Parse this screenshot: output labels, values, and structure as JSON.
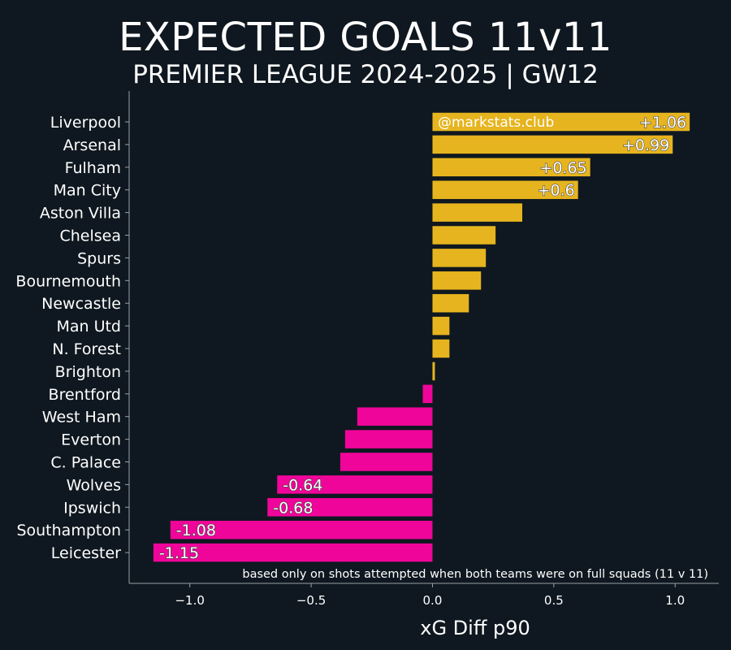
{
  "chart_data": {
    "type": "bar",
    "orientation": "horizontal",
    "title": "EXPECTED GOALS 11v11",
    "subtitle": "PREMIER LEAGUE 2024-2025 | GW12",
    "xlabel": "xG Diff p90",
    "ylabel": "",
    "xlim": [
      -1.25,
      1.18
    ],
    "xticks": [
      -1.0,
      -0.5,
      0.0,
      0.5,
      1.0
    ],
    "xtick_labels": [
      "−1.0",
      "−0.5",
      "0.0",
      "0.5",
      "1.0"
    ],
    "grid": false,
    "watermark": "@markstats.club",
    "footnote": "based only on shots attempted when both teams were on full squads (11 v 11)",
    "colors": {
      "positive": "#e6b41e",
      "negative": "#f0059a",
      "background": "#0f1820"
    },
    "categories": [
      "Liverpool",
      "Arsenal",
      "Fulham",
      "Man City",
      "Aston Villa",
      "Chelsea",
      "Spurs",
      "Bournemouth",
      "Newcastle",
      "Man Utd",
      "N. Forest",
      "Brighton",
      "Brentford",
      "West Ham",
      "Everton",
      "C. Palace",
      "Wolves",
      "Ipswich",
      "Southampton",
      "Leicester"
    ],
    "values": [
      1.06,
      0.99,
      0.65,
      0.6,
      0.37,
      0.26,
      0.22,
      0.2,
      0.15,
      0.07,
      0.07,
      0.01,
      -0.04,
      -0.31,
      -0.36,
      -0.38,
      -0.64,
      -0.68,
      -1.08,
      -1.15
    ],
    "data_labels": [
      "+1.06",
      "+0.99",
      "+0.65",
      "+0.6",
      "",
      "",
      "",
      "",
      "",
      "",
      "",
      "",
      "",
      "",
      "",
      "",
      "-0.64",
      "-0.68",
      "-1.08",
      "-1.15"
    ]
  }
}
